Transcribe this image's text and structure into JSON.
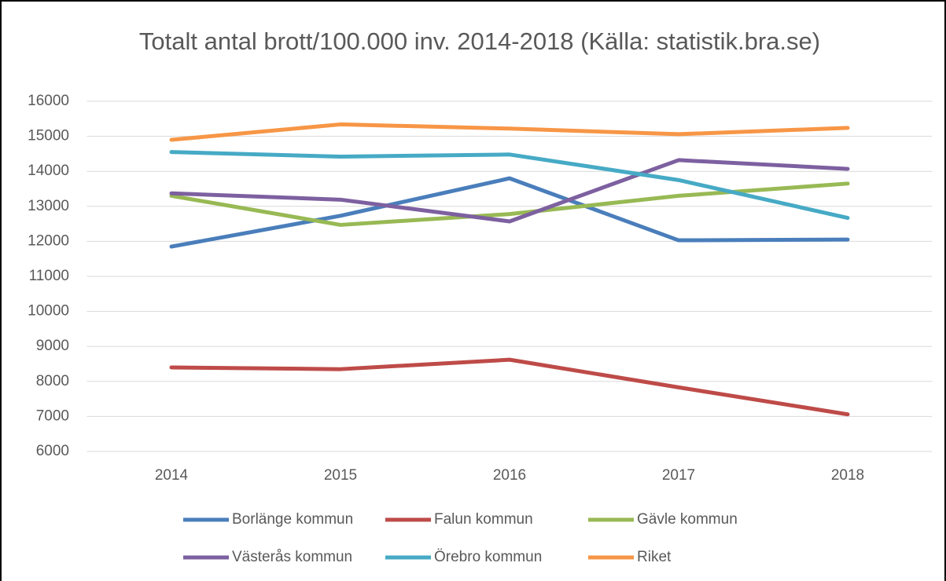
{
  "chart_data": {
    "type": "line",
    "title": "Totalt antal brott/100.000 inv. 2014-2018 (Källa: statistik.bra.se)",
    "categories": [
      "2014",
      "2015",
      "2016",
      "2017",
      "2018"
    ],
    "series": [
      {
        "name": "Borlänge kommun",
        "color": "#4a7ebb",
        "values": [
          11850,
          12730,
          13800,
          12030,
          12050
        ]
      },
      {
        "name": "Falun kommun",
        "color": "#be4b48",
        "values": [
          8400,
          8350,
          8620,
          7830,
          7060
        ]
      },
      {
        "name": "Gävle kommun",
        "color": "#98b954",
        "values": [
          13300,
          12470,
          12780,
          13300,
          13650
        ]
      },
      {
        "name": "Västerås kommun",
        "color": "#7d60a0",
        "values": [
          13370,
          13190,
          12570,
          14320,
          14070
        ]
      },
      {
        "name": "Örebro kommun",
        "color": "#46aac5",
        "values": [
          14550,
          14420,
          14480,
          13750,
          12670
        ]
      },
      {
        "name": "Riket",
        "color": "#f79646",
        "values": [
          14900,
          15340,
          15220,
          15060,
          15240
        ]
      }
    ],
    "ylim": [
      6000,
      16000
    ],
    "yticks": [
      6000,
      7000,
      8000,
      9000,
      10000,
      11000,
      12000,
      13000,
      14000,
      15000,
      16000
    ],
    "grid": true
  }
}
